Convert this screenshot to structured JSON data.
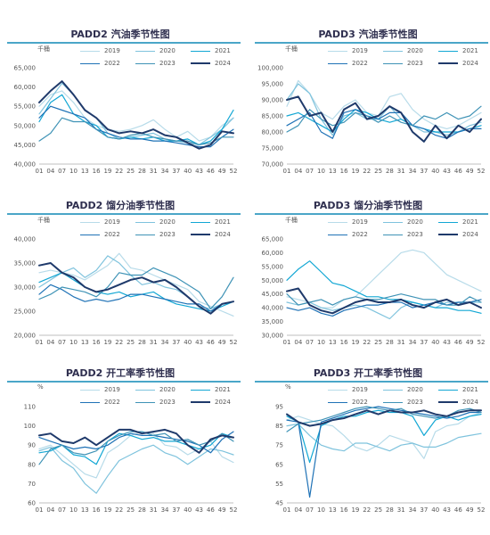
{
  "series_names": [
    "2019",
    "2020",
    "2021",
    "2022",
    "2023",
    "2024"
  ],
  "series_colors": {
    "2019": "#b7dbe9",
    "2020": "#7fc3dd",
    "2021": "#12a7d4",
    "2022": "#1f72b6",
    "2023": "#3f93b6",
    "2024": "#1f3a6b"
  },
  "series_widths": {
    "2019": 1,
    "2020": 1,
    "2021": 1,
    "2022": 1,
    "2023": 1,
    "2024": 2
  },
  "x_tick_labels": [
    "01",
    "04",
    "07",
    "10",
    "13",
    "16",
    "19",
    "22",
    "25",
    "28",
    "31",
    "34",
    "37",
    "40",
    "43",
    "46",
    "49",
    "52"
  ],
  "chart_data": [
    {
      "type": "line",
      "title": "PADD2 汽油季节性图",
      "unit": "千桶",
      "ylim": [
        40000,
        65000
      ],
      "yticks": [
        "40,000",
        "45,000",
        "50,000",
        "55,000",
        "60,000",
        "65,000"
      ],
      "x": [
        1,
        4,
        7,
        10,
        13,
        16,
        19,
        22,
        25,
        28,
        31,
        34,
        37,
        40,
        43,
        46,
        49,
        52
      ],
      "series": [
        {
          "name": "2019",
          "values": [
            55000,
            58000,
            59000,
            56000,
            52000,
            50000,
            49000,
            48500,
            49000,
            50000,
            51500,
            49000,
            47000,
            48500,
            46000,
            47000,
            50000,
            52000
          ]
        },
        {
          "name": "2020",
          "values": [
            53000,
            57000,
            61000,
            58000,
            54000,
            52000,
            48000,
            46500,
            47000,
            47500,
            48000,
            46500,
            46000,
            45500,
            45000,
            47000,
            49000,
            52000
          ]
        },
        {
          "name": "2021",
          "values": [
            51000,
            56000,
            58000,
            53000,
            51000,
            50000,
            47000,
            46500,
            47000,
            46500,
            47000,
            46000,
            46000,
            46500,
            45000,
            46000,
            49000,
            54000
          ]
        },
        {
          "name": "2022",
          "values": [
            52000,
            55000,
            54000,
            53000,
            52000,
            49000,
            48000,
            47000,
            46500,
            46500,
            46000,
            46000,
            45500,
            45000,
            44500,
            44500,
            47000,
            49000
          ]
        },
        {
          "name": "2023",
          "values": [
            46000,
            48000,
            52000,
            51000,
            51000,
            49000,
            47000,
            46500,
            47500,
            48000,
            47000,
            46500,
            46000,
            46000,
            45000,
            45500,
            47000,
            47000
          ]
        },
        {
          "name": "2024",
          "values": [
            56000,
            59000,
            61500,
            58000,
            54000,
            52000,
            49000,
            48000,
            48500,
            48000,
            49000,
            47500,
            47000,
            45500,
            44000,
            45000,
            48500,
            48000
          ]
        }
      ]
    },
    {
      "type": "line",
      "title": "PADD3 汽油季节性图",
      "unit": "千桶",
      "ylim": [
        70000,
        100000
      ],
      "yticks": [
        "70,000",
        "75,000",
        "80,000",
        "85,000",
        "90,000",
        "95,000",
        "100,000"
      ],
      "x": [
        1,
        4,
        7,
        10,
        13,
        16,
        19,
        22,
        25,
        28,
        31,
        34,
        37,
        40,
        43,
        46,
        49,
        52
      ],
      "series": [
        {
          "name": "2019",
          "values": [
            88000,
            96000,
            92000,
            86000,
            84000,
            88000,
            90000,
            86000,
            85000,
            91000,
            92000,
            87000,
            84000,
            82000,
            81000,
            82000,
            84000,
            86000
          ]
        },
        {
          "name": "2020",
          "values": [
            90000,
            95000,
            92000,
            84000,
            79000,
            85000,
            86000,
            84000,
            84000,
            88000,
            84000,
            82000,
            80000,
            80000,
            79000,
            80000,
            82000,
            83000
          ]
        },
        {
          "name": "2021",
          "values": [
            85000,
            86000,
            84000,
            82000,
            80000,
            84000,
            87000,
            86000,
            84000,
            83000,
            84000,
            82000,
            81000,
            80000,
            80000,
            80000,
            81000,
            82000
          ]
        },
        {
          "name": "2022",
          "values": [
            82000,
            84000,
            86000,
            80000,
            78000,
            86000,
            87000,
            85000,
            84000,
            86000,
            86000,
            82000,
            81000,
            79000,
            78000,
            80000,
            81000,
            81000
          ]
        },
        {
          "name": "2023",
          "values": [
            80000,
            82000,
            87000,
            84000,
            82000,
            83000,
            86000,
            85000,
            83000,
            85000,
            83000,
            82000,
            85000,
            84000,
            86000,
            84000,
            85000,
            88000
          ]
        },
        {
          "name": "2024",
          "values": [
            90000,
            91000,
            85000,
            86000,
            80000,
            87000,
            89000,
            84000,
            85000,
            88000,
            86000,
            80000,
            77000,
            82000,
            78000,
            82000,
            80000,
            84000
          ]
        }
      ]
    },
    {
      "type": "line",
      "title": "PADD2 馏分油季节性图",
      "unit": "千桶",
      "ylim": [
        20000,
        40000
      ],
      "yticks": [
        "20,000",
        "25,000",
        "30,000",
        "35,000",
        "40,000"
      ],
      "x": [
        1,
        4,
        7,
        10,
        13,
        16,
        19,
        22,
        25,
        28,
        31,
        34,
        37,
        40,
        43,
        46,
        49,
        52
      ],
      "series": [
        {
          "name": "2019",
          "values": [
            33000,
            33500,
            33000,
            32500,
            31500,
            33000,
            34500,
            37000,
            34000,
            33500,
            32500,
            31500,
            30500,
            29500,
            27000,
            26000,
            25000,
            24000
          ]
        },
        {
          "name": "2020",
          "values": [
            30000,
            31500,
            33000,
            34000,
            32000,
            33500,
            36500,
            35000,
            32500,
            30500,
            31000,
            30000,
            29500,
            28000,
            26000,
            25500,
            26500,
            27000
          ]
        },
        {
          "name": "2021",
          "values": [
            31000,
            32000,
            33000,
            31500,
            30000,
            29000,
            28500,
            29000,
            28000,
            28500,
            29000,
            27500,
            26500,
            26000,
            25500,
            25000,
            26000,
            27000
          ]
        },
        {
          "name": "2022",
          "values": [
            28500,
            30500,
            29500,
            28000,
            27000,
            27500,
            27000,
            27500,
            28500,
            28500,
            28000,
            27500,
            27000,
            26500,
            26500,
            25000,
            26500,
            27000
          ]
        },
        {
          "name": "2023",
          "values": [
            27500,
            28500,
            30000,
            29500,
            29000,
            28000,
            30000,
            33000,
            32500,
            32500,
            34000,
            33000,
            32000,
            30500,
            29000,
            25500,
            28000,
            32000
          ]
        },
        {
          "name": "2024",
          "values": [
            34500,
            35000,
            33000,
            32000,
            30000,
            29000,
            29500,
            30500,
            31500,
            32000,
            31000,
            31500,
            30000,
            28000,
            26000,
            24500,
            26500,
            27000
          ]
        }
      ]
    },
    {
      "type": "line",
      "title": "PADD3 馏分油季节性图",
      "unit": "千桶",
      "ylim": [
        30000,
        65000
      ],
      "yticks": [
        "30,000",
        "35,000",
        "40,000",
        "45,000",
        "50,000",
        "55,000",
        "60,000",
        "65,000"
      ],
      "x": [
        1,
        4,
        7,
        10,
        13,
        16,
        19,
        22,
        25,
        28,
        31,
        34,
        37,
        40,
        43,
        46,
        49,
        52
      ],
      "series": [
        {
          "name": "2019",
          "values": [
            44000,
            43000,
            42000,
            40000,
            40000,
            43000,
            44000,
            48000,
            52000,
            56000,
            60000,
            61000,
            60000,
            56000,
            52000,
            50000,
            48000,
            46000
          ]
        },
        {
          "name": "2020",
          "values": [
            42000,
            41000,
            42000,
            40000,
            39000,
            40000,
            41000,
            40000,
            38000,
            36000,
            40000,
            42000,
            41000,
            40000,
            42000,
            42000,
            42000,
            42000
          ]
        },
        {
          "name": "2021",
          "values": [
            50000,
            54000,
            57000,
            53000,
            49000,
            48000,
            46000,
            44000,
            44000,
            43000,
            43000,
            42000,
            41000,
            40000,
            40000,
            39000,
            39000,
            38000
          ]
        },
        {
          "name": "2022",
          "values": [
            40000,
            39000,
            40000,
            38000,
            37000,
            39000,
            40000,
            41000,
            41000,
            42000,
            42000,
            40000,
            41000,
            42000,
            41000,
            42000,
            42000,
            43000
          ]
        },
        {
          "name": "2023",
          "values": [
            45000,
            41000,
            42000,
            43000,
            41000,
            43000,
            44000,
            43000,
            43000,
            44000,
            45000,
            44000,
            43000,
            43000,
            41000,
            41000,
            44000,
            42000
          ]
        },
        {
          "name": "2024",
          "values": [
            46000,
            47000,
            41000,
            39000,
            38000,
            40000,
            42000,
            43000,
            42000,
            42000,
            43000,
            41000,
            40000,
            42000,
            43000,
            41000,
            42000,
            40000
          ]
        }
      ]
    },
    {
      "type": "line",
      "title": "PADD2 开工率季节性图",
      "unit": "%",
      "ylim": [
        60,
        110
      ],
      "yticks": [
        "60",
        "70",
        "80",
        "90",
        "100",
        "110"
      ],
      "x": [
        1,
        4,
        7,
        10,
        13,
        16,
        19,
        22,
        25,
        28,
        31,
        34,
        37,
        40,
        43,
        46,
        49,
        52
      ],
      "series": [
        {
          "name": "2019",
          "values": [
            88,
            90,
            85,
            80,
            75,
            73,
            86,
            90,
            95,
            97,
            96,
            90,
            89,
            85,
            88,
            92,
            84,
            81
          ]
        },
        {
          "name": "2020",
          "values": [
            87,
            89,
            82,
            78,
            70,
            65,
            74,
            82,
            85,
            88,
            90,
            86,
            84,
            80,
            84,
            88,
            87,
            85
          ]
        },
        {
          "name": "2021",
          "values": [
            86,
            87,
            90,
            85,
            84,
            80,
            92,
            96,
            95,
            93,
            94,
            92,
            92,
            90,
            88,
            90,
            96,
            94
          ]
        },
        {
          "name": "2022",
          "values": [
            94,
            92,
            90,
            88,
            89,
            88,
            90,
            94,
            96,
            95,
            95,
            94,
            93,
            92,
            90,
            86,
            93,
            97
          ]
        },
        {
          "name": "2023",
          "values": [
            80,
            88,
            90,
            86,
            85,
            87,
            92,
            95,
            97,
            97,
            95,
            96,
            92,
            93,
            90,
            92,
            96,
            92
          ]
        },
        {
          "name": "2024",
          "values": [
            95,
            96,
            92,
            91,
            94,
            90,
            94,
            98,
            98,
            96,
            97,
            98,
            96,
            90,
            86,
            93,
            95,
            94
          ]
        }
      ]
    },
    {
      "type": "line",
      "title": "PADD3 开工率季节性图",
      "unit": "%",
      "ylim": [
        45,
        95
      ],
      "yticks": [
        "45",
        "55",
        "65",
        "75",
        "85",
        "95"
      ],
      "x": [
        1,
        4,
        7,
        10,
        13,
        16,
        19,
        22,
        25,
        28,
        31,
        34,
        37,
        40,
        43,
        46,
        49,
        52
      ],
      "series": [
        {
          "name": "2019",
          "values": [
            88,
            90,
            88,
            86,
            85,
            80,
            74,
            72,
            75,
            80,
            78,
            76,
            68,
            82,
            85,
            86,
            90,
            92
          ]
        },
        {
          "name": "2020",
          "values": [
            85,
            86,
            80,
            75,
            73,
            72,
            76,
            76,
            74,
            72,
            75,
            76,
            74,
            74,
            76,
            79,
            80,
            81
          ]
        },
        {
          "name": "2021",
          "values": [
            90,
            87,
            66,
            85,
            88,
            90,
            90,
            92,
            93,
            92,
            92,
            90,
            80,
            88,
            90,
            88,
            90,
            91
          ]
        },
        {
          "name": "2022",
          "values": [
            88,
            87,
            48,
            87,
            89,
            91,
            93,
            94,
            95,
            94,
            93,
            92,
            91,
            90,
            89,
            90,
            92,
            92
          ]
        },
        {
          "name": "2023",
          "values": [
            82,
            86,
            87,
            88,
            90,
            92,
            94,
            95,
            94,
            93,
            94,
            91,
            90,
            89,
            90,
            93,
            94,
            92
          ]
        },
        {
          "name": "2024",
          "values": [
            91,
            87,
            85,
            86,
            88,
            89,
            91,
            93,
            91,
            93,
            92,
            92,
            93,
            91,
            90,
            92,
            93,
            93
          ]
        }
      ]
    }
  ]
}
